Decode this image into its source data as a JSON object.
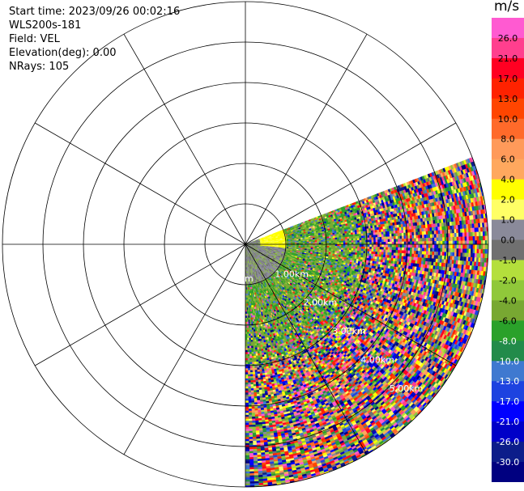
{
  "info": {
    "start_time": "Start time: 2023/09/26 00:02:16",
    "station": "WLS200s-181",
    "field": "Field: VEL",
    "elevation": "Elevation(deg): 0.00",
    "nrays": "NRays: 105"
  },
  "chart_data": {
    "type": "heatmap",
    "title": "",
    "projection": "polar (plan position indicator)",
    "field": "VEL",
    "units": "m/s",
    "elevation_deg": 0.0,
    "nrays": 105,
    "azimuth_coverage_deg": [
      69,
      180
    ],
    "max_range_km": 6.0,
    "range_rings_km": [
      1.0,
      2.0,
      3.0,
      4.0,
      5.0,
      6.0
    ],
    "range_ring_labels": [
      "1.00km",
      "2.00km",
      "3.00km",
      "4.00km",
      "5.00km"
    ],
    "center_label": "m",
    "spoke_interval_deg": 30,
    "colorbar": {
      "title": "m/s",
      "tick_labels": [
        "26.0",
        "21.0",
        "17.0",
        "13.0",
        "10.0",
        "8.0",
        "6.0",
        "4.0",
        "2.0",
        "1.0",
        "0.0",
        "-1.0",
        "-2.0",
        "-4.0",
        "-6.0",
        "-8.0",
        "-10.0",
        "-13.0",
        "-17.0",
        "-21.0",
        "-26.0",
        "-30.0"
      ],
      "colors": [
        "#ff5ad1",
        "#ff3f8e",
        "#ff0022",
        "#ff2200",
        "#ff4500",
        "#ff6a2a",
        "#ff9a5a",
        "#ffa85e",
        "#ffff00",
        "#ffff66",
        "#8a8a9a",
        "#707070",
        "#b4df3c",
        "#90c83a",
        "#78a832",
        "#2aa12a",
        "#228b4a",
        "#3f79d0",
        "#1d43e0",
        "#0000ff",
        "#0000c8",
        "#0c1d8a",
        "#000080"
      ],
      "value_range": [
        -30.0,
        26.0
      ]
    },
    "field_description": "Near range (0-1 km) mostly 0 m/s (grey) with +4 m/s (yellow) along the northern edge; 1-3 km mostly -4 to -6 m/s (green); beyond 3 km noisy mixture of all values (speckle)."
  }
}
